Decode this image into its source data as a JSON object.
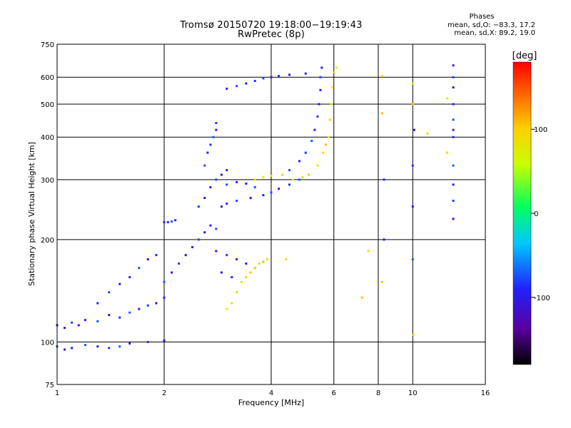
{
  "chart_data": {
    "type": "scatter",
    "title": "Tromsø 20150720 19:18:00−19:19:43",
    "subtitle": "RwPretec (8p)",
    "xlabel": "Frequency [MHz]",
    "ylabel": "Stationary phase Virtual Height [km]",
    "x_scale": "log",
    "y_scale": "log",
    "xlim": [
      1,
      16
    ],
    "ylim": [
      75,
      750
    ],
    "x_ticks": [
      "1",
      "2",
      "4",
      "6",
      "8",
      "10",
      "16"
    ],
    "x_tick_values": [
      1,
      2,
      4,
      6,
      8,
      10,
      16
    ],
    "y_ticks": [
      "75",
      "100",
      "200",
      "300",
      "400",
      "500",
      "600",
      "750"
    ],
    "y_tick_values": [
      75,
      100,
      200,
      300,
      400,
      500,
      600,
      750
    ],
    "grid_x": [
      2,
      4,
      6,
      8,
      10
    ],
    "grid_y": [
      100,
      200,
      300,
      400,
      500,
      600
    ],
    "colorbar": {
      "label": "[deg]",
      "range": [
        -180,
        180
      ],
      "ticks": [
        "100",
        "0",
        "-100"
      ],
      "tick_values": [
        100,
        0,
        -100
      ]
    },
    "phases": {
      "header": "Phases",
      "line_o": "mean, sd,O: −83.3, 17.2",
      "line_x": "mean, sd,X: 89.2, 19.0"
    },
    "series": [
      {
        "mode": "O",
        "color_value": -90,
        "points": [
          [
            1.0,
            112
          ],
          [
            1.05,
            110
          ],
          [
            1.1,
            114
          ],
          [
            1.15,
            112
          ],
          [
            1.2,
            116
          ],
          [
            1.3,
            115
          ],
          [
            1.4,
            120
          ],
          [
            1.5,
            118
          ],
          [
            1.6,
            122
          ],
          [
            1.7,
            125
          ],
          [
            1.8,
            128
          ],
          [
            1.9,
            130
          ],
          [
            2.0,
            135
          ],
          [
            1.0,
            97
          ],
          [
            1.05,
            95
          ],
          [
            1.1,
            96
          ],
          [
            1.2,
            98
          ],
          [
            1.3,
            97
          ],
          [
            1.4,
            96
          ],
          [
            1.5,
            97
          ],
          [
            1.6,
            99
          ],
          [
            1.8,
            100
          ],
          [
            2.0,
            101
          ],
          [
            1.3,
            130
          ],
          [
            1.4,
            140
          ],
          [
            1.5,
            148
          ],
          [
            1.6,
            155
          ],
          [
            1.7,
            165
          ],
          [
            1.8,
            175
          ],
          [
            1.9,
            180
          ],
          [
            2.0,
            150
          ],
          [
            2.1,
            160
          ],
          [
            2.2,
            170
          ],
          [
            2.3,
            180
          ],
          [
            2.4,
            190
          ],
          [
            2.5,
            200
          ],
          [
            2.6,
            210
          ],
          [
            2.7,
            220
          ],
          [
            2.8,
            215
          ],
          [
            2.0,
            225
          ],
          [
            2.05,
            225
          ],
          [
            2.1,
            226
          ],
          [
            2.15,
            228
          ],
          [
            2.5,
            250
          ],
          [
            2.6,
            265
          ],
          [
            2.7,
            285
          ],
          [
            2.8,
            300
          ],
          [
            2.9,
            310
          ],
          [
            3.0,
            320
          ],
          [
            2.6,
            330
          ],
          [
            2.65,
            360
          ],
          [
            2.7,
            380
          ],
          [
            2.75,
            400
          ],
          [
            2.8,
            420
          ],
          [
            2.8,
            440
          ],
          [
            2.9,
            250
          ],
          [
            3.0,
            255
          ],
          [
            3.2,
            260
          ],
          [
            3.5,
            265
          ],
          [
            3.8,
            270
          ],
          [
            4.0,
            275
          ],
          [
            4.2,
            282
          ],
          [
            4.5,
            290
          ],
          [
            4.8,
            300
          ],
          [
            2.8,
            185
          ],
          [
            3.0,
            180
          ],
          [
            3.2,
            175
          ],
          [
            3.4,
            170
          ],
          [
            3.6,
            165
          ],
          [
            2.9,
            160
          ],
          [
            3.1,
            155
          ],
          [
            4.5,
            320
          ],
          [
            4.8,
            340
          ],
          [
            5.0,
            360
          ],
          [
            5.2,
            390
          ],
          [
            5.3,
            420
          ],
          [
            5.4,
            460
          ],
          [
            5.45,
            500
          ],
          [
            5.5,
            550
          ],
          [
            5.5,
            600
          ],
          [
            5.55,
            640
          ],
          [
            3.0,
            555
          ],
          [
            3.2,
            565
          ],
          [
            3.4,
            575
          ],
          [
            3.6,
            585
          ],
          [
            3.8,
            595
          ],
          [
            4.0,
            600
          ],
          [
            4.2,
            605
          ],
          [
            4.5,
            610
          ],
          [
            5.0,
            615
          ],
          [
            3.0,
            290
          ],
          [
            3.2,
            295
          ],
          [
            3.4,
            292
          ],
          [
            3.6,
            285
          ],
          [
            8.3,
            200
          ],
          [
            8.3,
            300
          ],
          [
            10.0,
            175
          ],
          [
            10.0,
            250
          ],
          [
            10.0,
            330
          ],
          [
            10.1,
            420
          ],
          [
            13.0,
            650
          ],
          [
            13.0,
            600
          ],
          [
            13.0,
            560
          ],
          [
            13.0,
            500
          ],
          [
            13.0,
            450
          ],
          [
            13.0,
            420
          ],
          [
            13.0,
            400
          ],
          [
            13.0,
            330
          ],
          [
            13.0,
            290
          ],
          [
            13.0,
            260
          ],
          [
            13.0,
            230
          ]
        ]
      },
      {
        "mode": "X",
        "color_value": 90,
        "points": [
          [
            3.0,
            125
          ],
          [
            3.1,
            130
          ],
          [
            3.2,
            140
          ],
          [
            3.3,
            150
          ],
          [
            3.4,
            155
          ],
          [
            3.5,
            160
          ],
          [
            3.6,
            165
          ],
          [
            3.7,
            170
          ],
          [
            3.8,
            172
          ],
          [
            3.9,
            175
          ],
          [
            3.6,
            300
          ],
          [
            3.8,
            305
          ],
          [
            4.0,
            308
          ],
          [
            4.3,
            310
          ],
          [
            4.6,
            300
          ],
          [
            4.9,
            305
          ],
          [
            5.1,
            310
          ],
          [
            5.4,
            330
          ],
          [
            5.6,
            360
          ],
          [
            5.7,
            380
          ],
          [
            5.8,
            400
          ],
          [
            5.85,
            450
          ],
          [
            5.9,
            500
          ],
          [
            5.95,
            560
          ],
          [
            6.0,
            620
          ],
          [
            6.1,
            640
          ],
          [
            4.4,
            175
          ],
          [
            7.2,
            135
          ],
          [
            7.5,
            185
          ],
          [
            8.2,
            150
          ],
          [
            8.2,
            470
          ],
          [
            8.2,
            605
          ],
          [
            10.0,
            500
          ],
          [
            10.0,
            575
          ],
          [
            10.05,
            105
          ],
          [
            11.0,
            410
          ],
          [
            12.5,
            520
          ],
          [
            12.5,
            360
          ]
        ]
      }
    ]
  }
}
